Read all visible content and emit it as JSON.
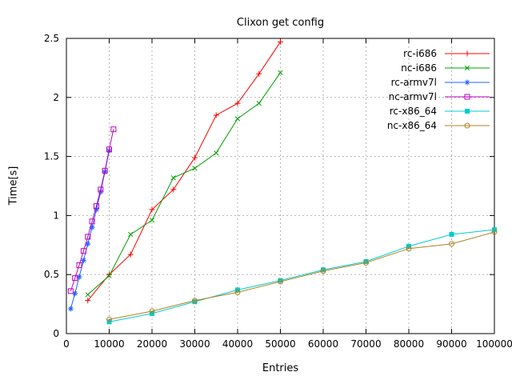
{
  "chart_data": {
    "type": "line",
    "title": "Clixon get config",
    "xlabel": "Entries",
    "ylabel": "Time[s]",
    "xlim": [
      0,
      100000
    ],
    "ylim": [
      0,
      2.5
    ],
    "grid": true,
    "legend_position": "top-right-inside",
    "x_ticks": [
      {
        "v": 0,
        "label": "0"
      },
      {
        "v": 10000,
        "label": "10000"
      },
      {
        "v": 20000,
        "label": "20000"
      },
      {
        "v": 30000,
        "label": "30000"
      },
      {
        "v": 40000,
        "label": "40000"
      },
      {
        "v": 50000,
        "label": "50000"
      },
      {
        "v": 60000,
        "label": "60000"
      },
      {
        "v": 70000,
        "label": "70000"
      },
      {
        "v": 80000,
        "label": "80000"
      },
      {
        "v": 90000,
        "label": "90000"
      },
      {
        "v": 100000,
        "label": "100000"
      }
    ],
    "y_ticks": [
      {
        "v": 0,
        "label": "0"
      },
      {
        "v": 0.5,
        "label": "0.5"
      },
      {
        "v": 1,
        "label": "1"
      },
      {
        "v": 1.5,
        "label": "1.5"
      },
      {
        "v": 2,
        "label": "2"
      },
      {
        "v": 2.5,
        "label": "2.5"
      }
    ],
    "series": [
      {
        "name": "rc-i686",
        "color": "#ff0000",
        "marker": "plus",
        "x": [
          5000,
          10000,
          15000,
          20000,
          25000,
          30000,
          35000,
          40000,
          45000,
          50000
        ],
        "y": [
          0.28,
          0.5,
          0.67,
          1.05,
          1.22,
          1.49,
          1.85,
          1.95,
          2.2,
          2.47
        ]
      },
      {
        "name": "nc-i686",
        "color": "#00a000",
        "marker": "cross",
        "x": [
          5000,
          10000,
          15000,
          20000,
          25000,
          30000,
          35000,
          40000,
          45000,
          50000
        ],
        "y": [
          0.33,
          0.49,
          0.84,
          0.96,
          1.32,
          1.4,
          1.53,
          1.82,
          1.95,
          2.21
        ]
      },
      {
        "name": "rc-armv7l",
        "color": "#2060ff",
        "marker": "asterisk",
        "x": [
          1000,
          2000,
          3000,
          4000,
          5000,
          6000,
          7000,
          8000,
          9000,
          10000
        ],
        "y": [
          0.21,
          0.34,
          0.48,
          0.62,
          0.76,
          0.9,
          1.05,
          1.2,
          1.37,
          1.55
        ]
      },
      {
        "name": "nc-armv7l",
        "color": "#c000c0",
        "marker": "square-open",
        "x": [
          1000,
          2000,
          3000,
          4000,
          5000,
          6000,
          7000,
          8000,
          9000,
          10000,
          11000
        ],
        "y": [
          0.36,
          0.47,
          0.58,
          0.7,
          0.82,
          0.95,
          1.08,
          1.22,
          1.38,
          1.56,
          1.73
        ]
      },
      {
        "name": "rc-x86_64",
        "color": "#00cccc",
        "marker": "square-filled",
        "x": [
          10000,
          20000,
          30000,
          40000,
          50000,
          60000,
          70000,
          80000,
          90000,
          100000
        ],
        "y": [
          0.1,
          0.17,
          0.27,
          0.37,
          0.45,
          0.54,
          0.61,
          0.74,
          0.84,
          0.88
        ]
      },
      {
        "name": "nc-x86_64",
        "color": "#b08020",
        "marker": "circle-open",
        "x": [
          10000,
          20000,
          30000,
          40000,
          50000,
          60000,
          70000,
          80000,
          90000,
          100000
        ],
        "y": [
          0.12,
          0.19,
          0.28,
          0.35,
          0.44,
          0.53,
          0.6,
          0.72,
          0.76,
          0.86
        ]
      }
    ]
  }
}
